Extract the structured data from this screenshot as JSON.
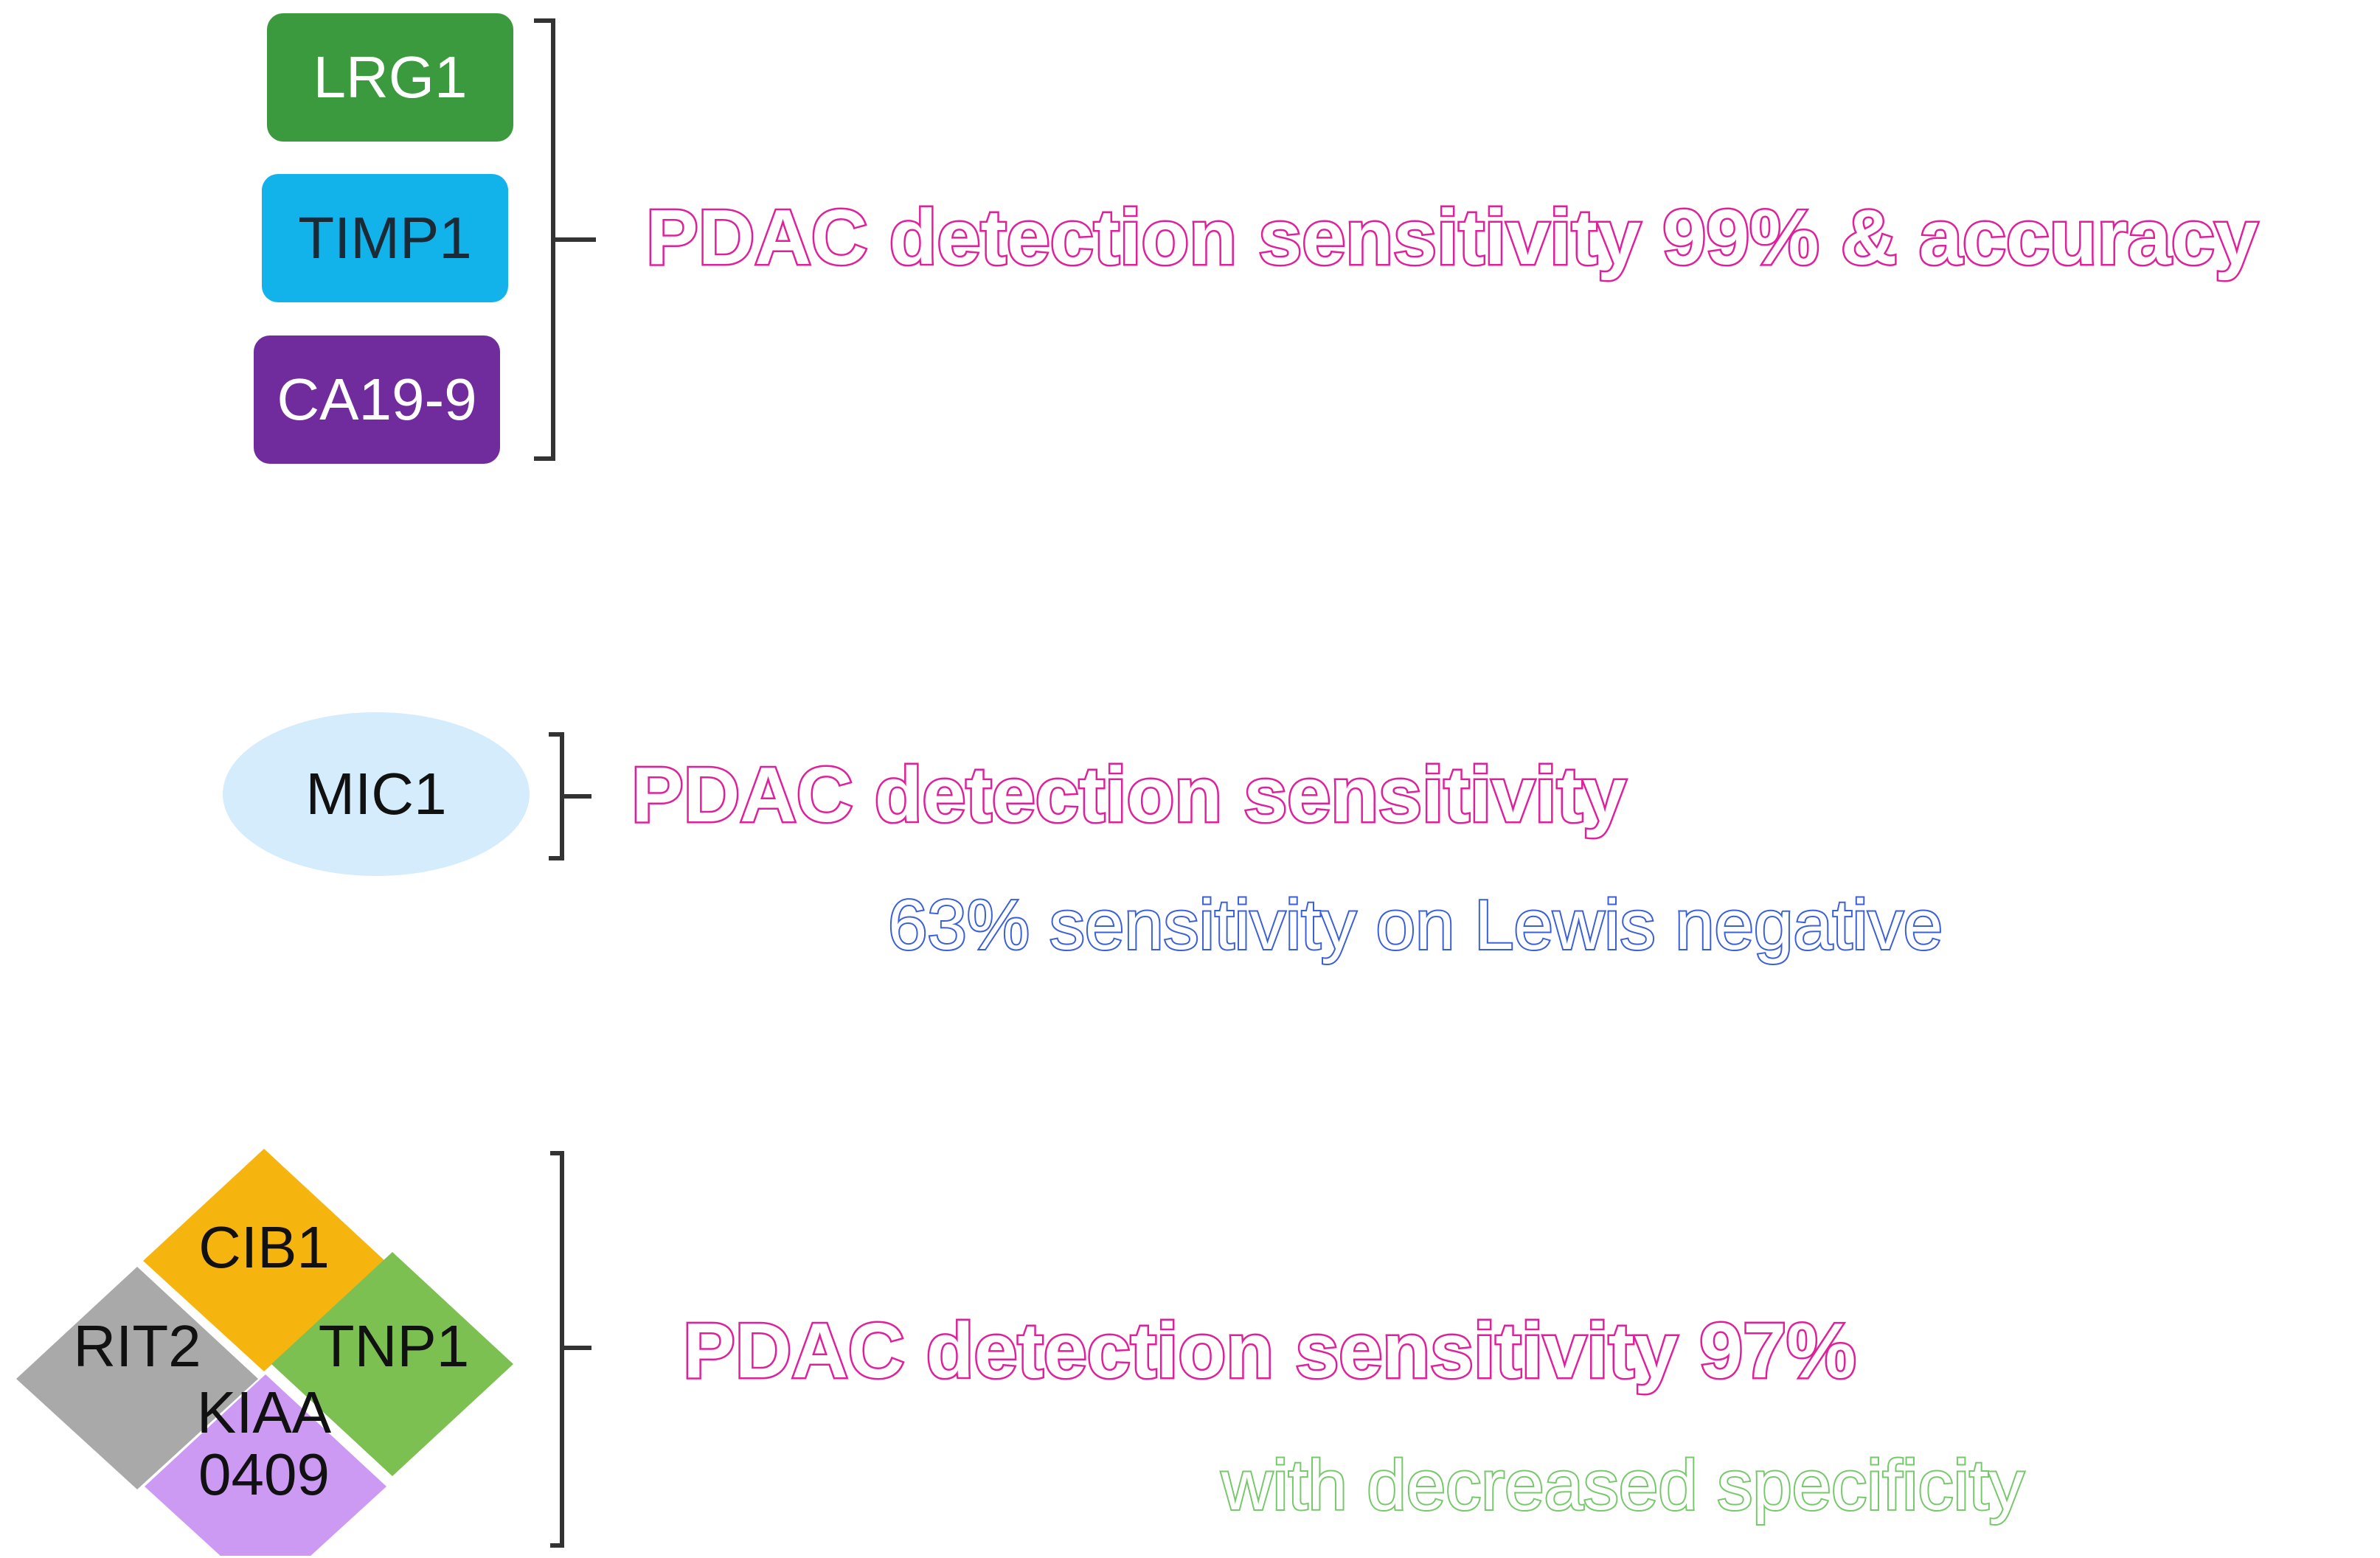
{
  "group1": {
    "markers": [
      {
        "label": "LRG1",
        "color": "#3a9a3d",
        "text_color": "#ffffff"
      },
      {
        "label": "TIMP1",
        "color": "#12b2ea",
        "text_color": "#1b2a35"
      },
      {
        "label": "CA19-9",
        "color": "#702c9d",
        "text_color": "#ffffff"
      }
    ],
    "result": "PDAC detection sensitivity 99% & accuracy",
    "result_color": "#e0209a"
  },
  "group2": {
    "marker": {
      "label": "MIC1",
      "color": "#d4ecfb",
      "text_color": "#111111"
    },
    "result": "PDAC detection sensitivity",
    "result_color": "#e0209a",
    "note": "63% sensitivity on Lewis negative",
    "note_color": "#3b5fd9"
  },
  "group3": {
    "markers": [
      {
        "label": "CIB1",
        "color": "#f6b40f"
      },
      {
        "label": "RIT2",
        "color": "#a9a9a9"
      },
      {
        "label": "TNP1",
        "color": "#7cc052"
      },
      {
        "label": "KIAA 0409",
        "line1": "KIAA",
        "line2": "0409",
        "color": "#cc9af3"
      }
    ],
    "result": "PDAC detection sensitivity 97%",
    "result_color": "#e0209a",
    "note": "with decreased specificity",
    "note_color": "#76c96a"
  }
}
